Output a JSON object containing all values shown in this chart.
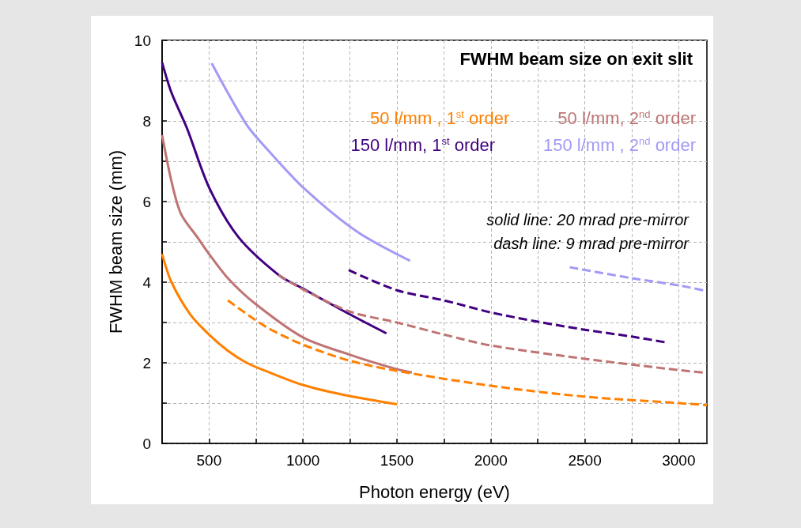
{
  "chart_data": {
    "type": "line",
    "title": "FWHM beam size on exit slit",
    "xlabel": "Photon energy (eV)",
    "ylabel": "FWHM beam size (mm)",
    "annotations": [
      "solid line: 20 mrad pre-mirror",
      "dash line: 9 mrad pre-mirror"
    ],
    "xlim": [
      250,
      3150
    ],
    "ylim": [
      0,
      10
    ],
    "xticks": [
      500,
      {
        "value": 750,
        "label": null
      },
      1000,
      {
        "value": 1250,
        "label": null
      },
      1500,
      {
        "value": 1750,
        "label": null
      },
      2000,
      {
        "value": 2250,
        "label": null
      },
      2500,
      {
        "value": 2750,
        "label": null
      },
      3000
    ],
    "yticks": [
      0,
      {
        "value": 1,
        "label": null
      },
      2,
      {
        "value": 3,
        "label": null
      },
      4,
      {
        "value": 5,
        "label": null
      },
      6,
      {
        "value": 7,
        "label": null
      },
      8,
      {
        "value": 9,
        "label": null
      },
      10
    ],
    "grid": true,
    "legend": "top right",
    "marker": "none",
    "series": [
      {
        "name": "50 l/mm , 1$^{st}$ order",
        "color": "#ff8000",
        "line_style": "solid",
        "x": [
          250,
          300,
          400,
          500,
          600,
          700,
          800,
          1000,
          1200,
          1400,
          1500
        ],
        "values": [
          4.7,
          4.0,
          3.2,
          2.7,
          2.3,
          2.0,
          1.8,
          1.45,
          1.22,
          1.05,
          0.97
        ]
      },
      {
        "name": "50 l/mm, 2$^{nd}$ order",
        "color": "#bf7474",
        "line_style": "solid",
        "x": [
          250,
          300,
          350,
          440,
          500,
          600,
          750,
          1000,
          1250,
          1500,
          1580
        ],
        "values": [
          7.65,
          6.5,
          5.7,
          5.1,
          4.7,
          4.1,
          3.45,
          2.63,
          2.2,
          1.84,
          1.76
        ]
      },
      {
        "name": "150 l/mm, 1$^{st}$ order",
        "color": "#41007f",
        "line_style": "solid",
        "x": [
          250,
          300,
          384,
          500,
          656,
          870,
          1000,
          1250,
          1444
        ],
        "values": [
          9.45,
          8.7,
          7.8,
          6.35,
          5.12,
          4.18,
          3.84,
          3.2,
          2.73
        ]
      },
      {
        "name": "150 l/mm , 2$^{nd}$ order",
        "color": "#a29af5",
        "line_style": "solid",
        "x": [
          514,
          698,
          815,
          1012,
          1289,
          1570
        ],
        "values": [
          9.43,
          7.92,
          7.27,
          6.3,
          5.25,
          4.53
        ]
      },
      {
        "color": "#ff8000",
        "line_style": "dashed",
        "x": [
          600,
          800,
          1000,
          1250,
          1500,
          2000,
          2500,
          3000,
          3150
        ],
        "values": [
          3.55,
          2.9,
          2.45,
          2.05,
          1.8,
          1.43,
          1.16,
          1.0,
          0.95
        ]
      },
      {
        "color": "#bf7474",
        "line_style": "dashed",
        "x": [
          870,
          1000,
          1250,
          1500,
          1750,
          2000,
          2500,
          3000,
          3150
        ],
        "values": [
          4.18,
          3.82,
          3.27,
          3.0,
          2.7,
          2.43,
          2.1,
          1.82,
          1.75
        ]
      },
      {
        "color": "#41007f",
        "line_style": "dashed",
        "x": [
          1243,
          1500,
          1750,
          2000,
          2250,
          2500,
          2750,
          2940
        ],
        "values": [
          4.3,
          3.8,
          3.55,
          3.25,
          3.02,
          2.82,
          2.65,
          2.5
        ]
      },
      {
        "color": "#a29af5",
        "line_style": "dashed",
        "x": [
          2420,
          2750,
          3000,
          3130
        ],
        "values": [
          4.37,
          4.1,
          3.92,
          3.8
        ]
      }
    ]
  }
}
